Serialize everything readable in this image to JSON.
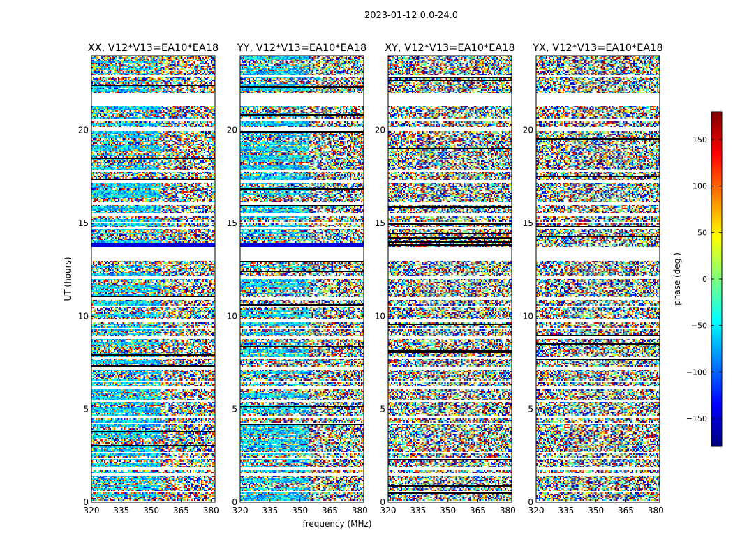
{
  "figure": {
    "suptitle": "2023-01-12 0.0-24.0"
  },
  "chart_data": {
    "type": "heatmap",
    "ylabel": "UT (hours)",
    "xlabel": "frequency (MHz)",
    "xlim": [
      320,
      382
    ],
    "ylim": [
      0,
      24
    ],
    "xticks": [
      320,
      335,
      350,
      365,
      380
    ],
    "yticks": [
      0,
      5,
      10,
      15,
      20
    ],
    "colorbar": {
      "label": "phase (deg.)",
      "range": [
        -180,
        180
      ],
      "ticks": [
        -150,
        -100,
        -50,
        0,
        50,
        100,
        150
      ],
      "colormap": "jet",
      "colors": [
        "#00007f",
        "#0000ff",
        "#007fff",
        "#00ffff",
        "#7fff7f",
        "#ffff00",
        "#ff7f00",
        "#ff0000",
        "#7f0000"
      ]
    },
    "flagged_time_ranges_hours": [
      [
        0.0,
        0.1
      ],
      [
        0.5,
        0.6
      ],
      [
        1.45,
        1.55
      ],
      [
        1.75,
        1.85
      ],
      [
        2.3,
        2.4
      ],
      [
        2.6,
        2.7
      ],
      [
        3.5,
        3.55
      ],
      [
        4.2,
        4.3
      ],
      [
        4.5,
        4.65
      ],
      [
        5.0,
        5.05
      ],
      [
        5.4,
        5.5
      ],
      [
        6.1,
        6.2
      ],
      [
        6.45,
        6.55
      ],
      [
        7.15,
        7.3
      ],
      [
        7.7,
        7.8
      ],
      [
        8.8,
        8.9
      ],
      [
        9.3,
        9.35
      ],
      [
        9.7,
        9.8
      ],
      [
        10.5,
        10.55
      ],
      [
        10.9,
        11.0
      ],
      [
        12.0,
        12.15
      ],
      [
        13.0,
        13.7
      ],
      [
        14.7,
        14.75
      ],
      [
        15.0,
        15.05
      ],
      [
        15.4,
        15.55
      ],
      [
        16.0,
        16.1
      ],
      [
        17.2,
        17.3
      ],
      [
        17.8,
        17.85
      ],
      [
        19.95,
        20.2
      ],
      [
        20.5,
        20.65
      ],
      [
        21.3,
        22.0
      ],
      [
        22.9,
        22.95
      ]
    ],
    "panels": [
      {
        "title": "XX, V12*V13=EA10*EA18",
        "coherent_low_freq": true,
        "dark_band_hours": [
          13.72,
          13.95
        ]
      },
      {
        "title": "YY, V12*V13=EA10*EA18",
        "coherent_low_freq": true,
        "dark_band_hours": [
          13.72,
          13.95
        ]
      },
      {
        "title": "XY, V12*V13=EA10*EA18",
        "coherent_low_freq": false,
        "dark_band_hours": []
      },
      {
        "title": "YX, V12*V13=EA10*EA18",
        "coherent_low_freq": false,
        "dark_band_hours": []
      }
    ]
  }
}
